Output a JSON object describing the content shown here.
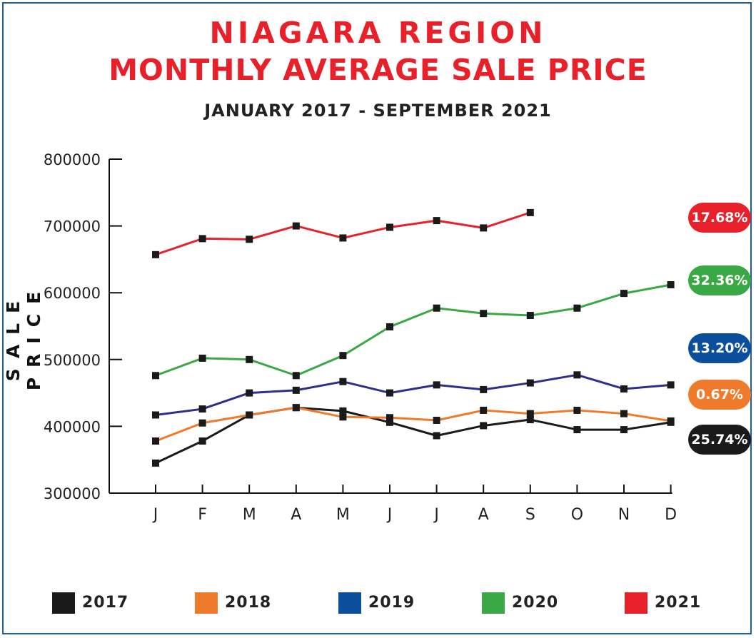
{
  "title_line1": "NIAGARA REGION",
  "title_line2": "MONTHLY AVERAGE SALE PRICE",
  "subtitle": "JANUARY 2017 - SEPTEMBER 2021",
  "chart_data": {
    "type": "line",
    "title": "NIAGARA REGION MONTHLY AVERAGE SALE PRICE",
    "subtitle": "JANUARY 2017 - SEPTEMBER 2021",
    "xlabel": "",
    "ylabel": "SALE PRICE",
    "ylim": [
      300000,
      800000
    ],
    "yticks": [
      "800000",
      "700000",
      "600000",
      "500000",
      "400000",
      "300000"
    ],
    "categories": [
      "J",
      "F",
      "M",
      "A",
      "M",
      "J",
      "J",
      "A",
      "S",
      "O",
      "N",
      "D"
    ],
    "grid": false,
    "legend_position": "bottom",
    "series": [
      {
        "name": "2017",
        "color": "#1a1a1a",
        "values": [
          345000,
          378000,
          417000,
          428000,
          423000,
          406000,
          386000,
          401000,
          410000,
          395000,
          395000,
          406000
        ],
        "change_label": "25.74%"
      },
      {
        "name": "2018",
        "color": "#f07a2b",
        "values": [
          378000,
          405000,
          417000,
          428000,
          414000,
          413000,
          409000,
          424000,
          419000,
          424000,
          419000,
          408000
        ],
        "change_label": "0.67%"
      },
      {
        "name": "2019",
        "color": "#2e2e8c",
        "values": [
          417000,
          426000,
          450000,
          454000,
          467000,
          450000,
          462000,
          455000,
          465000,
          477000,
          456000,
          462000
        ],
        "change_label": "13.20%"
      },
      {
        "name": "2020",
        "color": "#3aa845",
        "values": [
          476000,
          502000,
          500000,
          476000,
          506000,
          549000,
          577000,
          569000,
          566000,
          577000,
          599000,
          612000
        ],
        "change_label": "32.36%"
      },
      {
        "name": "2021",
        "color": "#e8202a",
        "values": [
          657000,
          681000,
          680000,
          700000,
          682000,
          698000,
          708000,
          697000,
          720000,
          null,
          null,
          null
        ],
        "change_label": "17.68%"
      }
    ]
  },
  "legend": [
    {
      "label": "2017",
      "color": "#1a1a1a"
    },
    {
      "label": "2018",
      "color": "#f07a2b"
    },
    {
      "label": "2019",
      "color": "#0b4f9c"
    },
    {
      "label": "2020",
      "color": "#3aa845"
    },
    {
      "label": "2021",
      "color": "#e8202a"
    }
  ],
  "pills": [
    {
      "text": "17.68%",
      "color": "#e8202a"
    },
    {
      "text": "32.36%",
      "color": "#3aa845"
    },
    {
      "text": "13.20%",
      "color": "#0b4f9c"
    },
    {
      "text": "0.67%",
      "color": "#f07a2b"
    },
    {
      "text": "25.74%",
      "color": "#1a1a1a"
    }
  ]
}
